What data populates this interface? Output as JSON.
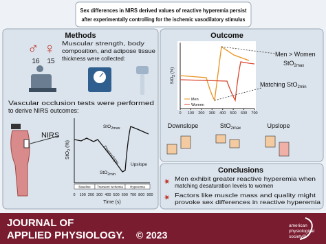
{
  "title": {
    "line1": "Sex differences in NIRS derived values of reactive hyperemia persist",
    "line2": "after experimentally controlling for the ischemic vasodilatory stimulus"
  },
  "methods": {
    "heading": "Methods",
    "men": "16",
    "women": "15",
    "collected": [
      "Muscular strength, body",
      "composition, and adipose tissue",
      "thickness were collected:"
    ],
    "occlusion": [
      "Vascular occlusion tests were performed",
      "to derive NIRS outcomes:"
    ],
    "nirs": "NIRS",
    "chart": {
      "y_label": {
        "base": "StO",
        "sub": "2",
        "unit": " (%)"
      },
      "x_label": "Time (s)",
      "x_ticks": [
        0,
        100,
        200,
        300,
        400,
        500,
        600,
        700,
        800,
        900
      ],
      "phases": [
        "Baseline",
        "Transient Ischemia",
        "Hyperemia"
      ],
      "max": {
        "base": "StO",
        "sub": "2max"
      },
      "downslope": "Downslope",
      "min": {
        "base": "StO",
        "sub": "2min"
      },
      "upslope": "Upslope"
    }
  },
  "outcome": {
    "heading": "Outcome",
    "chart": {
      "y_label": {
        "base": "StO",
        "sub": "2",
        "unit": " (%)"
      },
      "x_ticks": [
        0,
        100,
        200,
        300,
        400,
        500,
        600,
        700
      ],
      "legend": [
        "Men",
        "Women"
      ],
      "comparison": "Men > Women",
      "max": {
        "base": "StO",
        "sub": "2max"
      },
      "matching": "Matching ",
      "min": {
        "base": "StO",
        "sub": "2min"
      }
    },
    "boxplots": {
      "downslope": "Downslope",
      "max": {
        "base": "StO",
        "sub": "2max"
      },
      "upslope": "Upslope"
    }
  },
  "conclusions": {
    "heading": "Conclusions",
    "points": [
      [
        "Men exhibit greater reactive hyperemia when",
        "matching desaturation levels to women"
      ],
      [
        "Factors like muscle mass and quality might",
        "provoke sex differences in reactive hyperemia"
      ]
    ]
  },
  "footer": {
    "journal": [
      "JOURNAL OF",
      "APPLIED PHYSIOLOGY."
    ],
    "year": "© 2023",
    "society": [
      "american",
      "physiological",
      "society®"
    ]
  }
}
